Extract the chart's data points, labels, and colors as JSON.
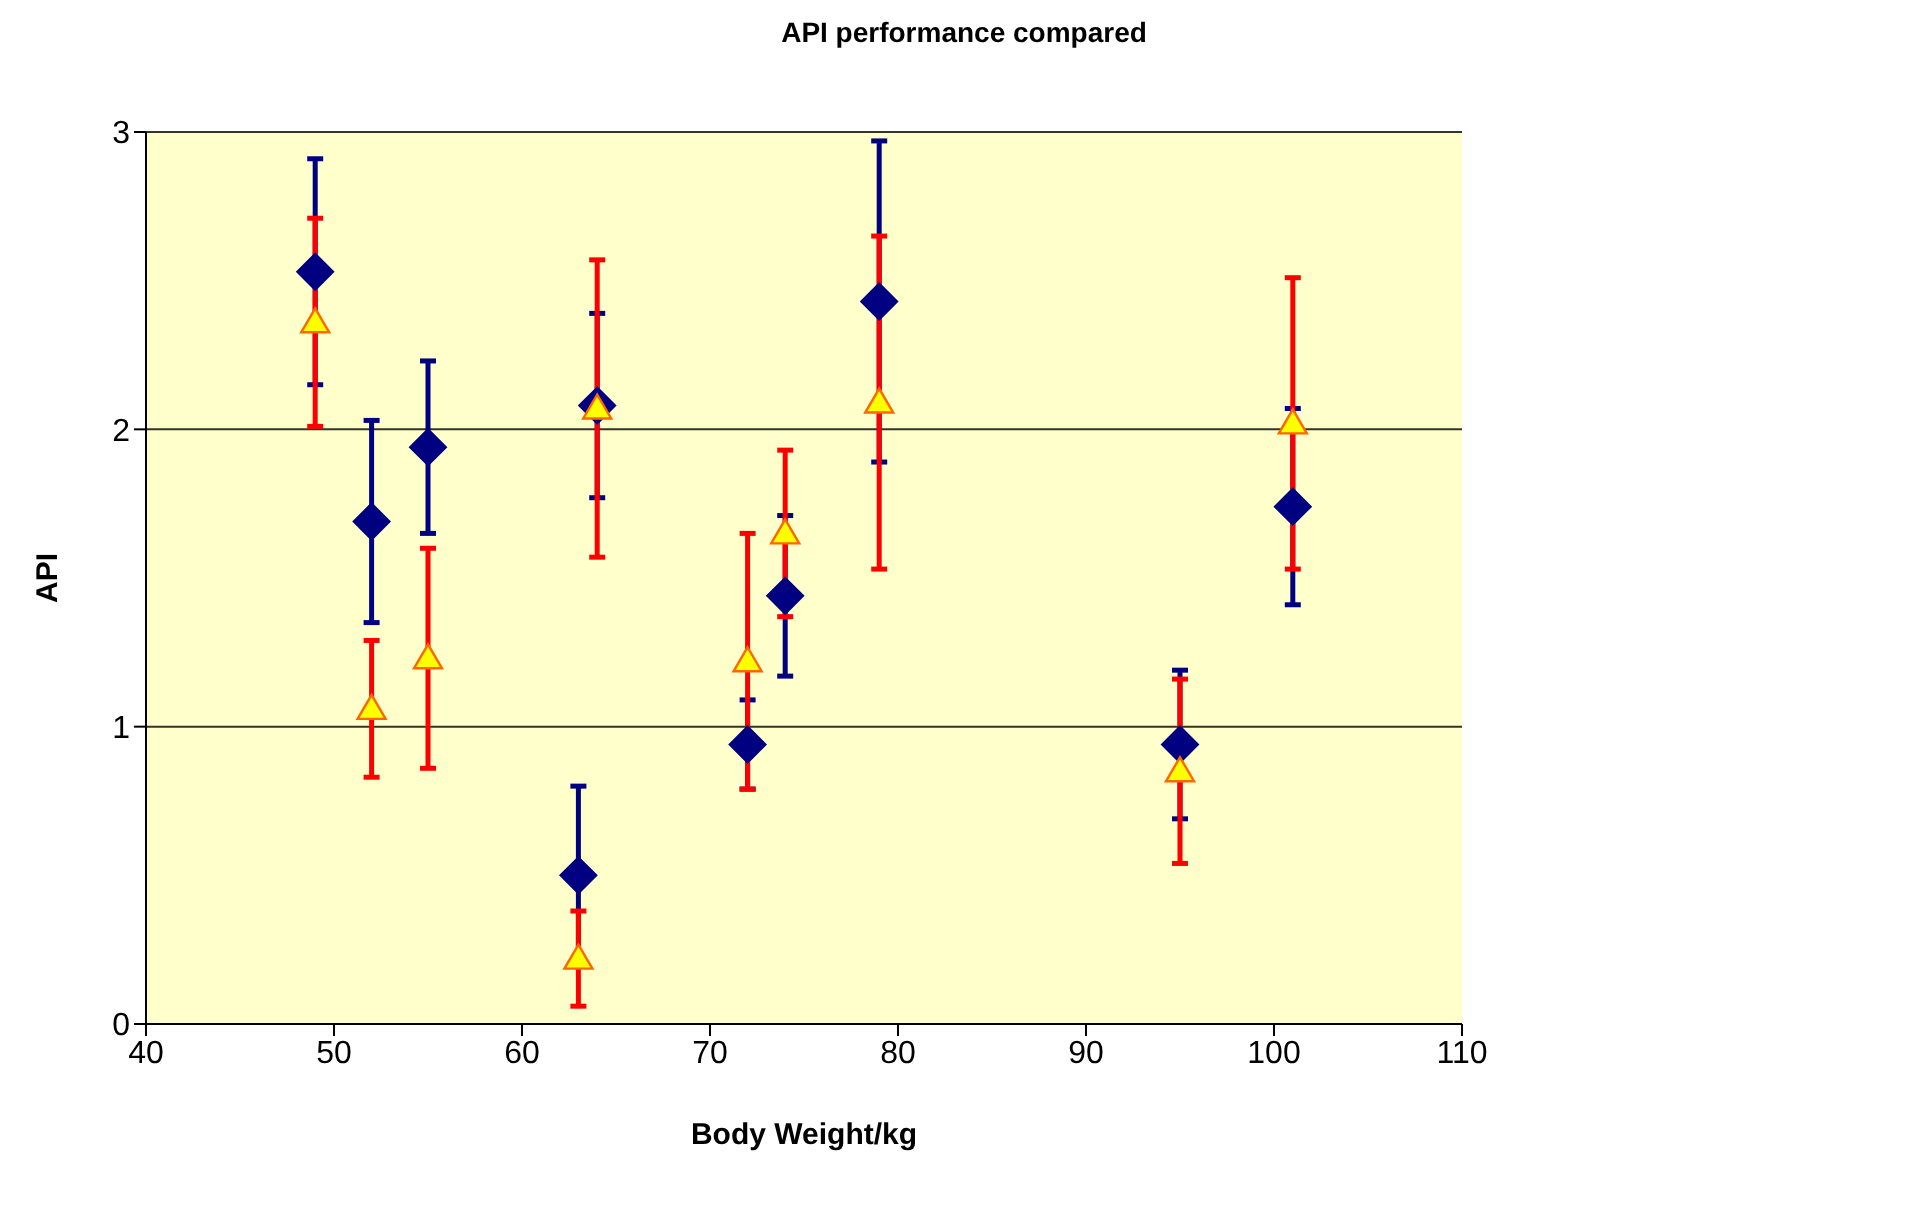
{
  "chart_data": {
    "type": "scatter",
    "title": "API performance compared",
    "xlabel": "Body Weight/kg",
    "ylabel": "API",
    "x": [
      49,
      52,
      55,
      63,
      64,
      72,
      74,
      79,
      95,
      101
    ],
    "series": [
      {
        "color": "#000080",
        "marker": "diamond",
        "values": [
          2.53,
          1.69,
          1.94,
          0.5,
          2.08,
          0.94,
          1.44,
          2.43,
          0.94,
          1.74
        ],
        "errors": [
          0.38,
          0.34,
          0.29,
          0.3,
          0.31,
          0.15,
          0.27,
          0.54,
          0.25,
          0.33
        ]
      },
      {
        "color": "#ffff00",
        "marker": "triangle",
        "values": [
          2.36,
          1.06,
          1.23,
          0.22,
          2.07,
          1.22,
          1.65,
          2.09,
          0.85,
          2.02
        ],
        "errors": [
          0.35,
          0.23,
          0.37,
          0.16,
          0.5,
          0.43,
          0.28,
          0.56,
          0.31,
          0.49
        ]
      }
    ],
    "xlim": [
      40,
      110
    ],
    "xticks": [
      40,
      50,
      60,
      70,
      80,
      90,
      100,
      110
    ],
    "ylim": [
      0,
      3
    ],
    "yticks": [
      0,
      1,
      2,
      3
    ],
    "grid": "y"
  }
}
